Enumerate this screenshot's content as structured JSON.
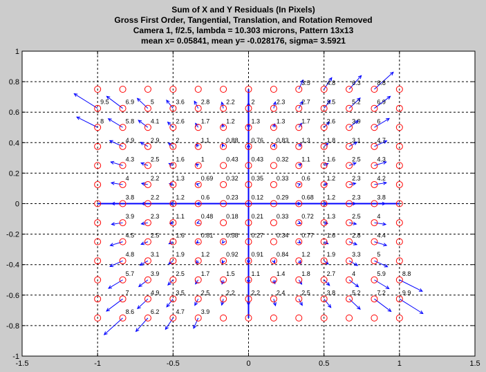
{
  "chart_data": {
    "type": "scatter",
    "title_lines": [
      "Sum of X and Y Residuals (In Pixels)",
      "Gross First Order, Tangential, Translation, and Rotation Removed",
      "Camera 1, f/2.5, lambda = 10.303 microns, Pattern 13x13",
      "mean x= 0.05841, mean y= -0.028176, sigma= 3.5921"
    ],
    "xlim": [
      -1.5,
      1.5
    ],
    "ylim": [
      -1,
      1
    ],
    "xticks": [
      "-1.5",
      "-1",
      "-0.5",
      "0",
      "0.5",
      "1",
      "1.5"
    ],
    "yticks": [
      "-1",
      "-0.8",
      "-0.6",
      "-0.4",
      "-0.2",
      "0",
      "0.2",
      "0.4",
      "0.6",
      "0.8",
      "1"
    ],
    "grid": true,
    "axis_lines": {
      "x": [
        -1,
        1
      ],
      "y": [
        -0.75,
        0.75
      ]
    },
    "grid_x": [
      -1,
      -0.8333,
      -0.6667,
      -0.5,
      -0.3333,
      -0.1667,
      0,
      0.1667,
      0.3333,
      0.5,
      0.6667,
      0.8333,
      1
    ],
    "grid_y": [
      0.75,
      0.625,
      0.5,
      0.375,
      0.25,
      0.125,
      0,
      -0.125,
      -0.25,
      -0.375,
      -0.5,
      -0.625,
      -0.75
    ],
    "magnitudes": [
      [
        "",
        "",
        "",
        "",
        "",
        "",
        "",
        "",
        "3.5",
        "4.8",
        "6.3",
        "8.8",
        ""
      ],
      [
        "9.5",
        "6.9",
        "5",
        "3.6",
        "2.8",
        "2.2",
        "2",
        "2.3",
        "2.7",
        "3.5",
        "5.2",
        "6.9",
        ""
      ],
      [
        "8",
        "5.8",
        "4.1",
        "2.6",
        "1.7",
        "1.2",
        "1.3",
        "1.3",
        "1.7",
        "2.6",
        "3.9",
        "6",
        ""
      ],
      [
        "",
        "4.9",
        "2.9",
        "2",
        "1.1",
        "0.88",
        "0.76",
        "0.83",
        "1.3",
        "1.8",
        "3.1",
        "4.7",
        ""
      ],
      [
        "",
        "4.3",
        "2.5",
        "1.6",
        "1",
        "0.43",
        "0.43",
        "0.32",
        "1.1",
        "1.6",
        "2.5",
        "4.3",
        ""
      ],
      [
        "",
        "4",
        "2.2",
        "1.3",
        "0.69",
        "0.32",
        "0.35",
        "0.33",
        "0.6",
        "1.2",
        "2.3",
        "4.2",
        ""
      ],
      [
        "",
        "3.8",
        "2.2",
        "1.2",
        "0.6",
        "0.23",
        "0.12",
        "0.29",
        "0.68",
        "1.2",
        "2.3",
        "3.8",
        ""
      ],
      [
        "",
        "3.9",
        "2.3",
        "1.1",
        "0.48",
        "0.18",
        "0.21",
        "0.33",
        "0.72",
        "1.3",
        "2.5",
        "4",
        ""
      ],
      [
        "",
        "4.5",
        "2.5",
        "1.6",
        "0.81",
        "0.58",
        "0.27",
        "0.34",
        "0.77",
        "1.6",
        "2.8",
        "4.4",
        ""
      ],
      [
        "",
        "4.8",
        "3.1",
        "1.9",
        "1.2",
        "0.92",
        "0.91",
        "0.84",
        "1.2",
        "1.9",
        "3.3",
        "5",
        ""
      ],
      [
        "",
        "5.7",
        "3.9",
        "2.5",
        "1.7",
        "1.5",
        "1.1",
        "1.4",
        "1.8",
        "2.7",
        "4",
        "5.9",
        "8.8"
      ],
      [
        "",
        "7",
        "4.9",
        "3.5",
        "2.5",
        "2.2",
        "2.2",
        "2.4",
        "2.5",
        "3.8",
        "5.2",
        "7.2",
        "9.9"
      ],
      [
        "",
        "8.6",
        "6.2",
        "4.7",
        "3.9",
        "",
        "",
        "",
        "",
        "",
        "",
        "",
        ""
      ]
    ],
    "colors": {
      "background": "#cccccc",
      "plot_bg": "#ffffff",
      "markers": "#ff0000",
      "arrows": "#0000ff",
      "axis_lines": "#0000ff",
      "grid": "#000000"
    }
  }
}
